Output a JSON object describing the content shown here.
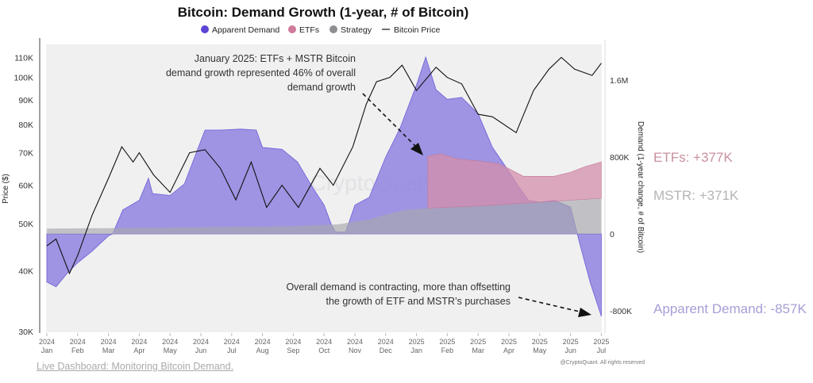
{
  "chart_data": {
    "type": "area",
    "title": "Bitcoin: Demand Growth (1-year, # of Bitcoin)",
    "legend": {
      "placement": "top-center",
      "items": [
        {
          "label": "Apparent Demand",
          "color": "#5b45d6",
          "marker": "dot"
        },
        {
          "label": "ETFs",
          "color": "#d07a9c",
          "marker": "dot"
        },
        {
          "label": "Strategy",
          "color": "#8e8e93",
          "marker": "dot"
        },
        {
          "label": "Bitcoin Price",
          "color": "#111111",
          "marker": "line"
        }
      ]
    },
    "y_left": {
      "label": "Price ($)",
      "scale": "log",
      "range": [
        30000,
        115000
      ],
      "ticks": [
        {
          "v": 30000,
          "t": "30K"
        },
        {
          "v": 40000,
          "t": "40K"
        },
        {
          "v": 50000,
          "t": "50K"
        },
        {
          "v": 60000,
          "t": "60K"
        },
        {
          "v": 70000,
          "t": "70K"
        },
        {
          "v": 80000,
          "t": "80K"
        },
        {
          "v": 90000,
          "t": "90K"
        },
        {
          "v": 100000,
          "t": "100K"
        },
        {
          "v": 110000,
          "t": "110K"
        }
      ]
    },
    "y_right": {
      "label": "Demand (1-year change, # of Bitcoin)",
      "scale": "linear",
      "range": [
        -1000000,
        1900000
      ],
      "ticks": [
        {
          "v": -800000,
          "t": "-800K"
        },
        {
          "v": 0,
          "t": "0"
        },
        {
          "v": 800000,
          "t": "800K"
        },
        {
          "v": 1600000,
          "t": "1.6M"
        }
      ]
    },
    "x_ticks": [
      [
        "2024",
        "Jan"
      ],
      [
        "2024",
        "Feb"
      ],
      [
        "2024",
        "Mar"
      ],
      [
        "2024",
        "Apr"
      ],
      [
        "2024",
        "May"
      ],
      [
        "2024",
        "Jun"
      ],
      [
        "2024",
        "Jul"
      ],
      [
        "2024",
        "Aug"
      ],
      [
        "2024",
        "Sep"
      ],
      [
        "2024",
        "Oct"
      ],
      [
        "2024",
        "Nov"
      ],
      [
        "2024",
        "Dec"
      ],
      [
        "2025",
        "Jan"
      ],
      [
        "2025",
        "Feb"
      ],
      [
        "2025",
        "Mar"
      ],
      [
        "2025",
        "Apr"
      ],
      [
        "2025",
        "May"
      ],
      [
        "2025",
        "Jun"
      ],
      [
        "2025",
        "Jul"
      ]
    ],
    "grid": false,
    "series": [
      {
        "name": "Apparent Demand",
        "axis": "right",
        "type": "area",
        "color": "#8f84e0",
        "points": [
          [
            "2024-01-01",
            -500000
          ],
          [
            "2024-01-10",
            -550000
          ],
          [
            "2024-01-20",
            -420000
          ],
          [
            "2024-02-01",
            -300000
          ],
          [
            "2024-02-15",
            -180000
          ],
          [
            "2024-03-01",
            -20000
          ],
          [
            "2024-03-05",
            0
          ],
          [
            "2024-03-15",
            250000
          ],
          [
            "2024-04-01",
            350000
          ],
          [
            "2024-04-10",
            580000
          ],
          [
            "2024-04-14",
            420000
          ],
          [
            "2024-05-01",
            400000
          ],
          [
            "2024-05-15",
            520000
          ],
          [
            "2024-05-25",
            800000
          ],
          [
            "2024-06-05",
            1080000
          ],
          [
            "2024-06-20",
            1080000
          ],
          [
            "2024-07-10",
            1090000
          ],
          [
            "2024-07-25",
            1080000
          ],
          [
            "2024-08-01",
            900000
          ],
          [
            "2024-08-20",
            880000
          ],
          [
            "2024-09-05",
            750000
          ],
          [
            "2024-09-20",
            480000
          ],
          [
            "2024-10-01",
            300000
          ],
          [
            "2024-10-08",
            100000
          ],
          [
            "2024-10-12",
            20000
          ],
          [
            "2024-10-22",
            20000
          ],
          [
            "2024-11-01",
            300000
          ],
          [
            "2024-11-15",
            380000
          ],
          [
            "2024-12-01",
            800000
          ],
          [
            "2024-12-15",
            1100000
          ],
          [
            "2025-01-01",
            1550000
          ],
          [
            "2025-01-10",
            1840000
          ],
          [
            "2025-01-20",
            1500000
          ],
          [
            "2025-02-01",
            1400000
          ],
          [
            "2025-02-15",
            1420000
          ],
          [
            "2025-03-01",
            1250000
          ],
          [
            "2025-03-15",
            900000
          ],
          [
            "2025-04-01",
            650000
          ],
          [
            "2025-04-10",
            500000
          ],
          [
            "2025-04-20",
            350000
          ],
          [
            "2025-05-01",
            330000
          ],
          [
            "2025-05-15",
            350000
          ],
          [
            "2025-06-01",
            280000
          ],
          [
            "2025-06-10",
            -100000
          ],
          [
            "2025-06-20",
            -500000
          ],
          [
            "2025-07-01",
            -857000
          ]
        ]
      },
      {
        "name": "Strategy",
        "axis": "right",
        "type": "area",
        "color": "#a8a7ad",
        "points": [
          [
            "2024-01-01",
            55000
          ],
          [
            "2024-03-01",
            60000
          ],
          [
            "2024-06-01",
            70000
          ],
          [
            "2024-09-01",
            80000
          ],
          [
            "2024-10-15",
            100000
          ],
          [
            "2024-11-15",
            150000
          ],
          [
            "2024-12-01",
            200000
          ],
          [
            "2024-12-20",
            250000
          ],
          [
            "2025-01-15",
            270000
          ],
          [
            "2025-03-01",
            290000
          ],
          [
            "2025-05-01",
            330000
          ],
          [
            "2025-07-01",
            371000
          ]
        ]
      },
      {
        "name": "ETFs",
        "axis": "right",
        "type": "stacked-area",
        "color": "#d48fab",
        "points": [
          [
            "2025-01-12",
            540000
          ],
          [
            "2025-01-25",
            560000
          ],
          [
            "2025-02-10",
            500000
          ],
          [
            "2025-03-01",
            470000
          ],
          [
            "2025-03-20",
            430000
          ],
          [
            "2025-04-01",
            370000
          ],
          [
            "2025-04-15",
            280000
          ],
          [
            "2025-05-01",
            270000
          ],
          [
            "2025-05-15",
            260000
          ],
          [
            "2025-06-01",
            290000
          ],
          [
            "2025-06-15",
            340000
          ],
          [
            "2025-07-01",
            377000
          ]
        ]
      },
      {
        "name": "Bitcoin Price",
        "axis": "left",
        "type": "line",
        "color": "#111111",
        "points": [
          [
            "2024-01-01",
            45000
          ],
          [
            "2024-01-10",
            46500
          ],
          [
            "2024-01-23",
            39500
          ],
          [
            "2024-02-01",
            43000
          ],
          [
            "2024-02-15",
            52000
          ],
          [
            "2024-03-01",
            62000
          ],
          [
            "2024-03-14",
            72000
          ],
          [
            "2024-03-25",
            67000
          ],
          [
            "2024-04-01",
            70000
          ],
          [
            "2024-04-15",
            63000
          ],
          [
            "2024-05-01",
            58000
          ],
          [
            "2024-05-20",
            70000
          ],
          [
            "2024-06-05",
            71000
          ],
          [
            "2024-06-20",
            65000
          ],
          [
            "2024-07-05",
            56000
          ],
          [
            "2024-07-20",
            67000
          ],
          [
            "2024-08-05",
            54000
          ],
          [
            "2024-08-20",
            60000
          ],
          [
            "2024-09-06",
            54000
          ],
          [
            "2024-09-27",
            65000
          ],
          [
            "2024-10-10",
            60000
          ],
          [
            "2024-10-29",
            72000
          ],
          [
            "2024-11-12",
            88000
          ],
          [
            "2024-11-22",
            98000
          ],
          [
            "2024-12-05",
            100000
          ],
          [
            "2024-12-17",
            106000
          ],
          [
            "2025-01-01",
            94000
          ],
          [
            "2025-01-20",
            105000
          ],
          [
            "2025-02-01",
            100000
          ],
          [
            "2025-02-15",
            97000
          ],
          [
            "2025-03-01",
            84000
          ],
          [
            "2025-03-15",
            83000
          ],
          [
            "2025-04-08",
            77000
          ],
          [
            "2025-04-25",
            94000
          ],
          [
            "2025-05-10",
            104000
          ],
          [
            "2025-05-22",
            110000
          ],
          [
            "2025-06-05",
            104000
          ],
          [
            "2025-06-22",
            101000
          ],
          [
            "2025-07-01",
            107000
          ]
        ]
      }
    ],
    "annotations": [
      {
        "lines": [
          "January  2025: ETFs + MSTR Bitcoin",
          "demand growth represented 46% of overall",
          "demand growth"
        ]
      },
      {
        "lines": [
          "Overall demand is contracting, more than offsetting",
          "the growth of ETF and MSTR’s purchases"
        ]
      }
    ],
    "end_labels": [
      {
        "text": "ETFs: +377K",
        "color": "#c9919f"
      },
      {
        "text": "MSTR: +371K",
        "color": "#b4b4b4"
      },
      {
        "text": "Apparent Demand: -857K",
        "color": "#a59fd6"
      }
    ],
    "watermark": "CryptoQuant",
    "copyright": "@CryptoQuant. All rights reserved"
  },
  "footer": {
    "link": "Live Dashboard: Monitoring Bitcoin Demand."
  }
}
